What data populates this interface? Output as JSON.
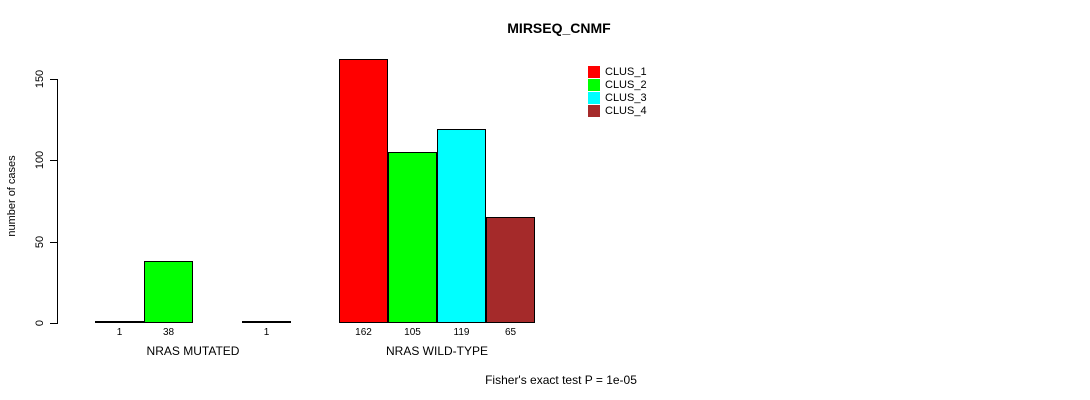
{
  "chart_data": {
    "type": "bar",
    "title": "MIRSEQ_CNMF",
    "ylabel": "number of cases",
    "annotation": "Fisher's exact test P = 1e-05",
    "yticks": [
      0,
      50,
      100,
      150
    ],
    "ylim": [
      0,
      162
    ],
    "grid": false,
    "legend_position": "top-right",
    "series_colors": [
      "#FF0000",
      "#00FF00",
      "#00FFFF",
      "#A52A2A"
    ],
    "legend": [
      {
        "label": "CLUS_1",
        "color": "#FF0000"
      },
      {
        "label": "CLUS_2",
        "color": "#00FF00"
      },
      {
        "label": "CLUS_3",
        "color": "#00FFFF"
      },
      {
        "label": "CLUS_4",
        "color": "#A52A2A"
      }
    ],
    "groups": [
      {
        "label": "NRAS MUTATED",
        "values": [
          1,
          38,
          0,
          1
        ],
        "value_labels": [
          "1",
          "38",
          "",
          "1"
        ]
      },
      {
        "label": "NRAS WILD-TYPE",
        "values": [
          162,
          105,
          119,
          65
        ],
        "value_labels": [
          "162",
          "105",
          "119",
          "65"
        ]
      }
    ]
  }
}
